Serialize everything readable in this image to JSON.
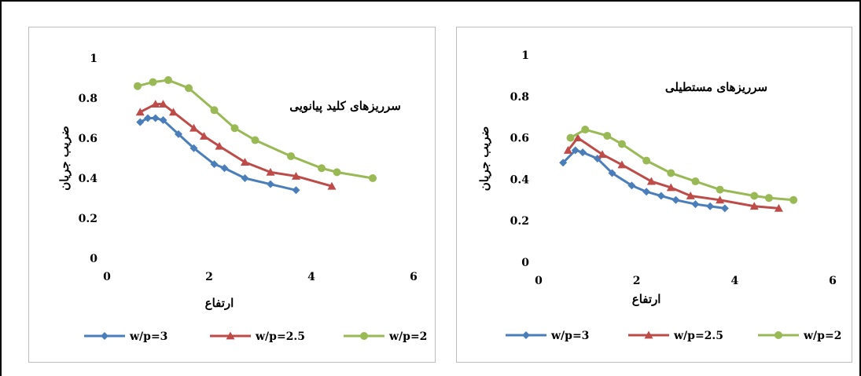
{
  "chart_data": [
    {
      "type": "line",
      "title": "سرریزهای کلید پیانویی",
      "xlabel": "ارتفاع",
      "ylabel": "ضریب جریان",
      "xlim": [
        0,
        6
      ],
      "ylim": [
        0,
        1
      ],
      "xticks": [
        "0",
        "2",
        "4",
        "6"
      ],
      "yticks": [
        "0",
        "0.2",
        "0.4",
        "0.6",
        "0.8",
        "1"
      ],
      "grid": false,
      "legend": "bottom",
      "series": [
        {
          "name": "w/p=3",
          "color": "#4a7ebb",
          "marker": "diamond",
          "x": [
            0.65,
            0.8,
            0.95,
            1.1,
            1.4,
            1.7,
            2.1,
            2.3,
            2.7,
            3.2,
            3.7
          ],
          "y": [
            0.68,
            0.7,
            0.7,
            0.69,
            0.62,
            0.55,
            0.47,
            0.45,
            0.4,
            0.37,
            0.34
          ]
        },
        {
          "name": "w/p=2.5",
          "color": "#be4b48",
          "marker": "triangle",
          "x": [
            0.65,
            0.95,
            1.1,
            1.3,
            1.7,
            1.9,
            2.2,
            2.7,
            3.2,
            3.7,
            4.4
          ],
          "y": [
            0.73,
            0.77,
            0.77,
            0.73,
            0.65,
            0.61,
            0.56,
            0.48,
            0.43,
            0.41,
            0.36
          ]
        },
        {
          "name": "w/p=2",
          "color": "#98b954",
          "marker": "circle",
          "x": [
            0.6,
            0.9,
            1.2,
            1.6,
            2.1,
            2.5,
            2.9,
            3.6,
            4.2,
            4.5,
            5.2
          ],
          "y": [
            0.86,
            0.88,
            0.89,
            0.85,
            0.74,
            0.65,
            0.59,
            0.51,
            0.45,
            0.43,
            0.4
          ]
        }
      ]
    },
    {
      "type": "line",
      "title": "سرریزهای مستطیلی",
      "xlabel": "ارتفاع",
      "ylabel": "ضریب جریان",
      "xlim": [
        0,
        6
      ],
      "ylim": [
        0,
        1
      ],
      "xticks": [
        "0",
        "2",
        "4",
        "6"
      ],
      "yticks": [
        "0",
        "0.2",
        "0.4",
        "0.6",
        "0.8",
        "1"
      ],
      "grid": false,
      "legend": "bottom",
      "series": [
        {
          "name": "w/p=3",
          "color": "#4a7ebb",
          "marker": "diamond",
          "x": [
            0.5,
            0.75,
            0.9,
            1.2,
            1.5,
            1.9,
            2.2,
            2.5,
            2.8,
            3.2,
            3.5,
            3.8
          ],
          "y": [
            0.48,
            0.54,
            0.53,
            0.5,
            0.43,
            0.37,
            0.34,
            0.32,
            0.3,
            0.28,
            0.27,
            0.26
          ]
        },
        {
          "name": "w/p=2.5",
          "color": "#be4b48",
          "marker": "triangle",
          "x": [
            0.6,
            0.8,
            1.3,
            1.7,
            2.3,
            2.7,
            3.1,
            3.7,
            4.4,
            4.9
          ],
          "y": [
            0.54,
            0.6,
            0.52,
            0.47,
            0.39,
            0.36,
            0.32,
            0.3,
            0.27,
            0.26
          ]
        },
        {
          "name": "w/p=2",
          "color": "#98b954",
          "marker": "circle",
          "x": [
            0.65,
            0.95,
            1.4,
            1.7,
            2.2,
            2.7,
            3.2,
            3.7,
            4.4,
            4.7,
            5.2
          ],
          "y": [
            0.6,
            0.64,
            0.61,
            0.57,
            0.49,
            0.43,
            0.39,
            0.35,
            0.32,
            0.31,
            0.3
          ]
        }
      ]
    }
  ]
}
